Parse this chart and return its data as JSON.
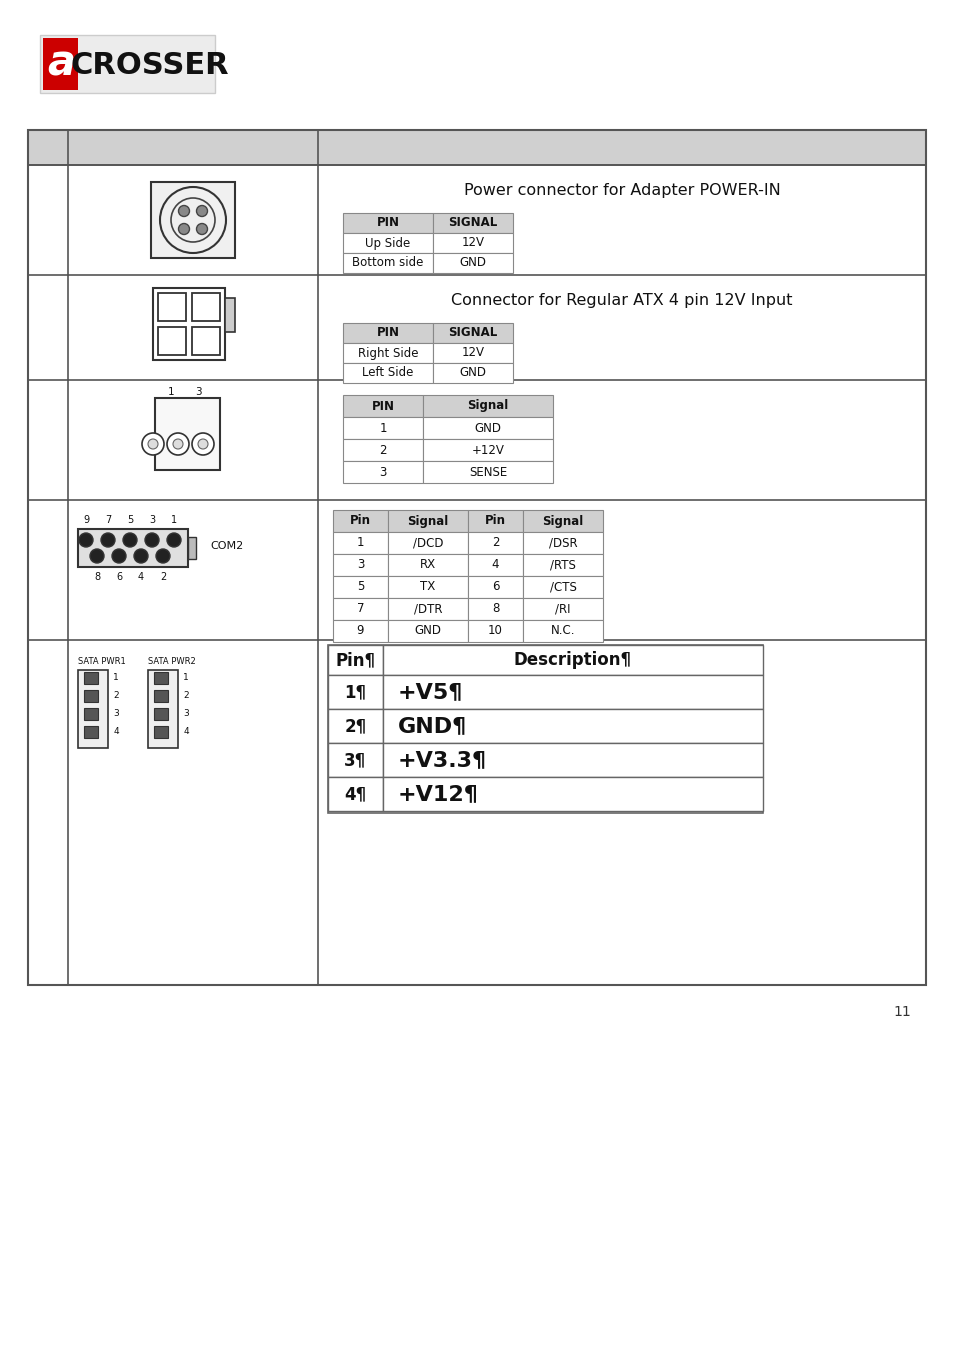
{
  "bg_color": "#ffffff",
  "page_number": "11",
  "table_header_bg": "#d0d0d0",
  "table_border": "#666666",
  "inner_border": "#888888",
  "table_bg": "#ffffff",
  "logo_bg": "#e8e8e8",
  "logo_border": "#cccccc",
  "section1": {
    "title": "Power connector for Adapter POWER-IN",
    "headers": [
      "PIN",
      "SIGNAL"
    ],
    "rows": [
      [
        "Up Side",
        "12V"
      ],
      [
        "Bottom side",
        "GND"
      ]
    ]
  },
  "section2": {
    "title": "Connector for Regular ATX 4 pin 12V Input",
    "headers": [
      "PIN",
      "SIGNAL"
    ],
    "rows": [
      [
        "Right Side",
        "12V"
      ],
      [
        "Left Side",
        "GND"
      ]
    ]
  },
  "section3": {
    "headers": [
      "PIN",
      "Signal"
    ],
    "rows": [
      [
        "1",
        "GND"
      ],
      [
        "2",
        "+12V"
      ],
      [
        "3",
        "SENSE"
      ]
    ]
  },
  "section4": {
    "headers": [
      "Pin",
      "Signal",
      "Pin",
      "Signal"
    ],
    "rows": [
      [
        "1",
        "/DCD",
        "2",
        "/DSR"
      ],
      [
        "3",
        "RX",
        "4",
        "/RTS"
      ],
      [
        "5",
        "TX",
        "6",
        "/CTS"
      ],
      [
        "7",
        "/DTR",
        "8",
        "/RI"
      ],
      [
        "9",
        "GND",
        "10",
        "N.C."
      ]
    ]
  },
  "section5": {
    "headers": [
      "Pin¶",
      "Description¶"
    ],
    "rows": [
      [
        "1¶",
        "+V5¶"
      ],
      [
        "2¶",
        "GND¶"
      ],
      [
        "3¶",
        "+V3.3¶"
      ],
      [
        "4¶",
        "+V12¶"
      ]
    ]
  }
}
